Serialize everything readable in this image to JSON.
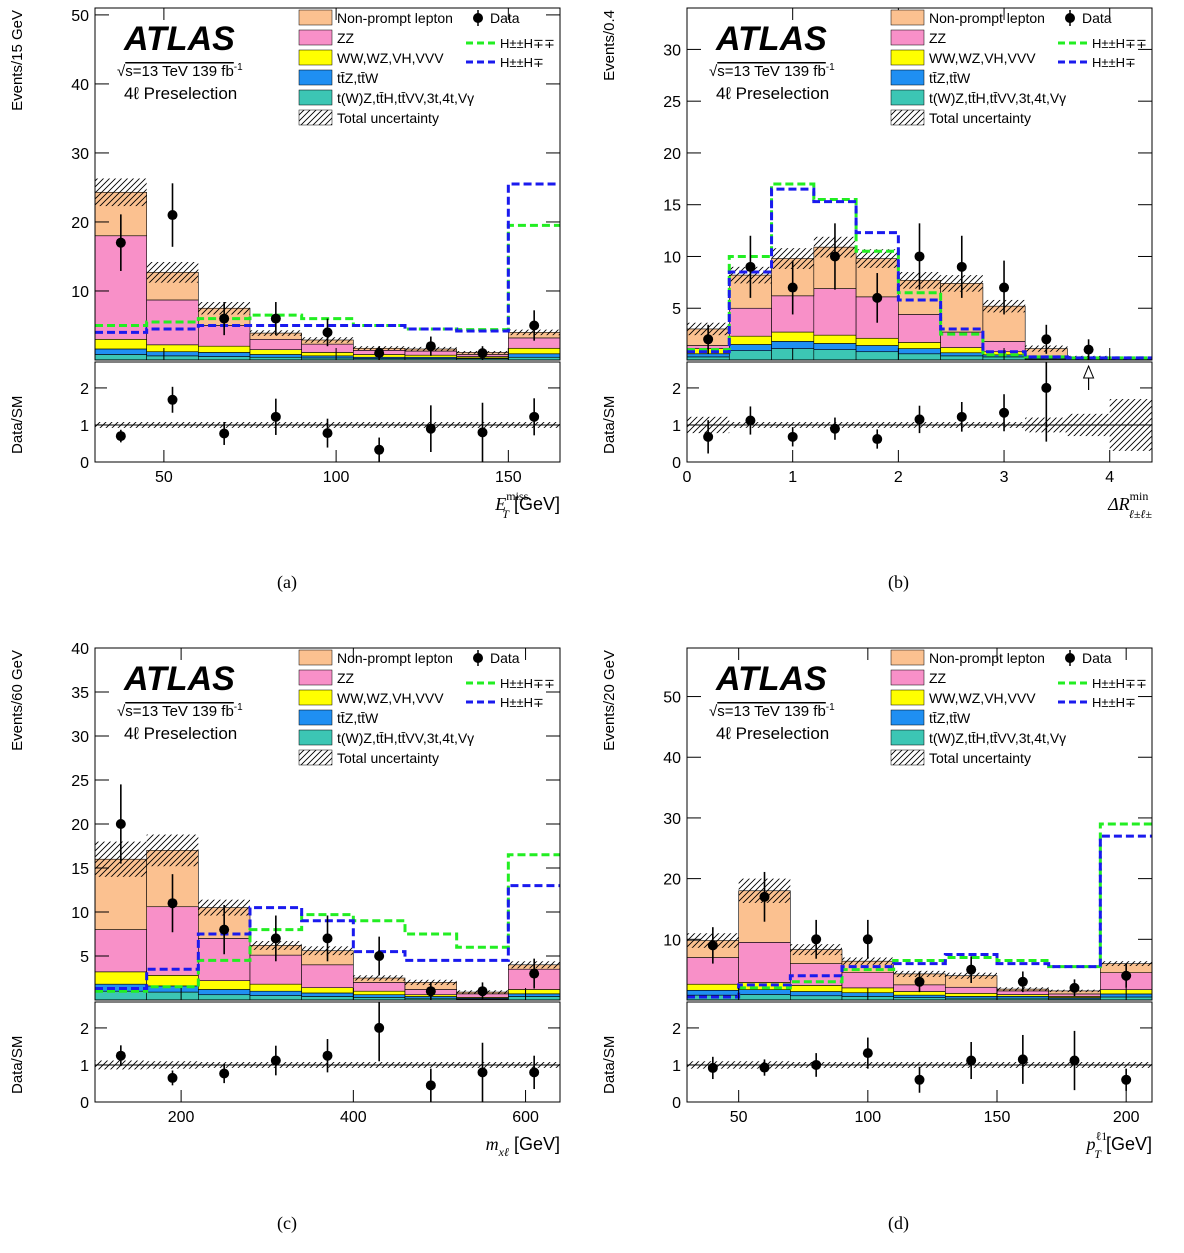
{
  "chart_data": [
    {
      "type": "bar",
      "panel_label": "(a)",
      "ylabel": "Events/15 GeV",
      "ratio_ylabel": "Data/SM",
      "xlabel_main": "E",
      "xlabel_sub": "T",
      "xlabel_sup": "miss",
      "xlabel_unit": " [GeV]",
      "xlim": [
        30,
        165
      ],
      "ylim": [
        0,
        51
      ],
      "ratio_ylim": [
        0,
        2.7
      ],
      "xticks": [
        50,
        100,
        150
      ],
      "yticks": [
        10,
        20,
        30,
        40,
        50
      ],
      "ratio_yticks": [
        0,
        1,
        2
      ],
      "edges": [
        30,
        45,
        60,
        75,
        90,
        105,
        120,
        135,
        150,
        165
      ],
      "stack": [
        {
          "name": "t(W)Z,tt̄H,tt̄VV,3t,4t,Vγ",
          "color": "#3cc6b4",
          "values": [
            0.8,
            0.6,
            0.5,
            0.4,
            0.3,
            0.2,
            0.2,
            0.2,
            0.4
          ]
        },
        {
          "name": "tt̄Z,tt̄W",
          "color": "#1f8ff2",
          "values": [
            0.8,
            0.6,
            0.6,
            0.4,
            0.3,
            0.2,
            0.2,
            0.1,
            0.5
          ]
        },
        {
          "name": "WW,WZ,VH,VVV",
          "color": "#ffff00",
          "values": [
            1.4,
            1.0,
            0.9,
            0.7,
            0.5,
            0.4,
            0.3,
            0.2,
            0.8
          ]
        },
        {
          "name": "ZZ",
          "color": "#f890c8",
          "values": [
            15.0,
            6.5,
            3.0,
            1.5,
            1.2,
            0.6,
            0.6,
            0.3,
            1.5
          ]
        },
        {
          "name": "Non-prompt lepton",
          "color": "#fbc190",
          "values": [
            6.3,
            4.0,
            2.5,
            0.9,
            0.6,
            0.3,
            0.3,
            0.3,
            0.8
          ]
        }
      ],
      "uncertainty": [
        2.0,
        1.5,
        0.9,
        0.4,
        0.4,
        0.3,
        0.3,
        0.2,
        0.4
      ],
      "signals": [
        {
          "name": "H±±H∓∓",
          "color": "#22ee22",
          "values": [
            5,
            5.5,
            6,
            6.5,
            6,
            5,
            4.5,
            4.4,
            19.5
          ]
        },
        {
          "name": "H±±H∓",
          "color": "#1a1aee",
          "values": [
            4,
            4.5,
            5,
            5,
            5,
            5,
            4.5,
            4.2,
            25.5
          ]
        }
      ],
      "data": {
        "name": "Data",
        "x": [
          37.5,
          52.5,
          67.5,
          82.5,
          97.5,
          112.5,
          127.5,
          142.5,
          157.5
        ],
        "y": [
          17,
          21,
          6,
          6,
          4,
          1,
          2,
          1,
          5
        ],
        "err": [
          4.1,
          4.6,
          2.4,
          2.4,
          2.0,
          1.0,
          1.4,
          1.0,
          2.2
        ]
      },
      "ratio": {
        "x": [
          37.5,
          52.5,
          67.5,
          82.5,
          97.5,
          112.5,
          127.5,
          142.5,
          157.5
        ],
        "y": [
          0.7,
          1.68,
          0.77,
          1.22,
          0.78,
          0.33,
          0.9,
          0.8,
          1.22
        ],
        "err": [
          0.17,
          0.35,
          0.31,
          0.49,
          0.39,
          0.33,
          0.63,
          0.8,
          0.5
        ],
        "band": [
          0.08,
          0.08,
          0.08,
          0.08,
          0.08,
          0.08,
          0.08,
          0.08,
          0.08
        ]
      }
    },
    {
      "type": "bar",
      "panel_label": "(b)",
      "ylabel": "Events/0.4",
      "ratio_ylabel": "Data/SM",
      "xlabel_main": "ΔR",
      "xlabel_sub": "ℓ±ℓ±",
      "xlabel_sup": "min",
      "xlabel_unit": "",
      "xlim": [
        0,
        4.4
      ],
      "ylim": [
        0,
        34
      ],
      "ratio_ylim": [
        0,
        2.7
      ],
      "xticks": [
        0,
        1,
        2,
        3,
        4
      ],
      "yticks": [
        5,
        10,
        15,
        20,
        25,
        30
      ],
      "ratio_yticks": [
        0,
        1,
        2
      ],
      "edges": [
        0,
        0.4,
        0.8,
        1.2,
        1.6,
        2.0,
        2.4,
        2.8,
        3.2,
        3.6,
        4.0,
        4.4
      ],
      "stack": [
        {
          "name": "t(W)Z,tt̄H,tt̄VV,3t,4t,Vγ",
          "color": "#3cc6b4",
          "values": [
            0.3,
            0.9,
            1.1,
            1.0,
            0.8,
            0.6,
            0.4,
            0.3,
            0.1,
            0.05,
            0.02
          ]
        },
        {
          "name": "tt̄Z,tt̄W",
          "color": "#1f8ff2",
          "values": [
            0.3,
            0.6,
            0.7,
            0.6,
            0.6,
            0.5,
            0.3,
            0.2,
            0.1,
            0.05,
            0.02
          ]
        },
        {
          "name": "WW,WZ,VH,VVV",
          "color": "#ffff00",
          "values": [
            0.5,
            0.8,
            0.9,
            0.8,
            0.7,
            0.6,
            0.5,
            0.3,
            0.1,
            0.05,
            0.02
          ]
        },
        {
          "name": "ZZ",
          "color": "#f890c8",
          "values": [
            0.3,
            2.7,
            3.5,
            4.5,
            4.0,
            2.7,
            1.5,
            1.0,
            0.1,
            0.05,
            0.02
          ]
        },
        {
          "name": "Non-prompt lepton",
          "color": "#fbc190",
          "values": [
            1.6,
            3.2,
            3.6,
            4.0,
            3.7,
            3.3,
            4.7,
            3.4,
            0.7,
            0.1,
            0.02
          ]
        }
      ],
      "uncertainty": [
        0.6,
        0.8,
        1.0,
        1.0,
        0.9,
        0.8,
        0.8,
        0.6,
        0.3,
        0.1,
        0.05
      ],
      "signals": [
        {
          "name": "H±±H∓∓",
          "color": "#22ee22",
          "values": [
            1.0,
            10,
            17,
            15.5,
            10.5,
            6.5,
            2.5,
            0.5,
            0.3,
            0.2,
            0.2
          ]
        },
        {
          "name": "H±±H∓",
          "color": "#1a1aee",
          "values": [
            0.8,
            8.5,
            16.5,
            15.3,
            12.3,
            5.8,
            3.0,
            0.8,
            0.3,
            0.2,
            0.2
          ]
        }
      ],
      "data": {
        "name": "Data",
        "x": [
          0.2,
          0.6,
          1.0,
          1.4,
          1.8,
          2.2,
          2.6,
          3.0,
          3.4,
          3.8
        ],
        "y": [
          2,
          9,
          7,
          10,
          6,
          10,
          9,
          7,
          2,
          1
        ],
        "err": [
          1.4,
          3.0,
          2.6,
          3.2,
          2.4,
          3.2,
          3.0,
          2.6,
          1.4,
          1.0
        ]
      },
      "ratio": {
        "x": [
          0.2,
          0.6,
          1.0,
          1.4,
          1.8,
          2.2,
          2.6,
          3.0,
          3.4
        ],
        "y": [
          0.68,
          1.12,
          0.68,
          0.9,
          0.62,
          1.15,
          1.22,
          1.33,
          2.0
        ],
        "err": [
          0.45,
          0.38,
          0.26,
          0.3,
          0.26,
          0.37,
          0.4,
          0.5,
          1.45
        ],
        "band": [
          0.22,
          0.08,
          0.08,
          0.08,
          0.08,
          0.08,
          0.08,
          0.08,
          0.2,
          0.3,
          0.7
        ],
        "arrow_x": 3.8
      }
    },
    {
      "type": "bar",
      "panel_label": "(c)",
      "ylabel": "Events/60 GeV",
      "ratio_ylabel": "Data/SM",
      "xlabel_main": "m",
      "xlabel_sub": "xℓ",
      "xlabel_sup": "",
      "xlabel_unit": " [GeV]",
      "xlim": [
        100,
        640
      ],
      "ylim": [
        0,
        40
      ],
      "ratio_ylim": [
        0,
        2.7
      ],
      "xticks": [
        200,
        400,
        600
      ],
      "yticks": [
        5,
        10,
        15,
        20,
        25,
        30,
        35,
        40
      ],
      "ratio_yticks": [
        0,
        1,
        2
      ],
      "edges": [
        100,
        160,
        220,
        280,
        340,
        400,
        460,
        520,
        580,
        640
      ],
      "stack": [
        {
          "name": "t(W)Z,tt̄H,tt̄VV,3t,4t,Vγ",
          "color": "#3cc6b4",
          "values": [
            1.0,
            0.9,
            0.6,
            0.5,
            0.4,
            0.3,
            0.2,
            0.1,
            0.4
          ]
        },
        {
          "name": "tt̄Z,tt̄W",
          "color": "#1f8ff2",
          "values": [
            0.8,
            0.7,
            0.6,
            0.5,
            0.4,
            0.3,
            0.2,
            0.1,
            0.3
          ]
        },
        {
          "name": "WW,WZ,VH,VVV",
          "color": "#ffff00",
          "values": [
            1.4,
            1.2,
            1.0,
            0.8,
            0.6,
            0.4,
            0.2,
            0.1,
            0.5
          ]
        },
        {
          "name": "ZZ",
          "color": "#f890c8",
          "values": [
            4.8,
            7.8,
            4.8,
            3.3,
            2.6,
            1.0,
            0.6,
            0.4,
            2.3
          ]
        },
        {
          "name": "Non-prompt lepton",
          "color": "#fbc190",
          "values": [
            8.0,
            6.4,
            3.5,
            1.1,
            1.6,
            0.5,
            0.8,
            0.2,
            0.5
          ]
        }
      ],
      "uncertainty": [
        2.0,
        1.8,
        0.9,
        0.5,
        0.5,
        0.3,
        0.3,
        0.2,
        0.4
      ],
      "signals": [
        {
          "name": "H±±H∓∓",
          "color": "#22ee22",
          "values": [
            1.0,
            1.5,
            4.5,
            8.0,
            9.7,
            9.0,
            7.5,
            6.0,
            16.5
          ]
        },
        {
          "name": "H±±H∓",
          "color": "#1a1aee",
          "values": [
            1.3,
            3.5,
            7.5,
            10.5,
            9.0,
            5.5,
            4.5,
            4.5,
            13.0
          ]
        }
      ],
      "data": {
        "name": "Data",
        "x": [
          130,
          190,
          250,
          310,
          370,
          430,
          490,
          550,
          610
        ],
        "y": [
          20,
          11,
          8,
          7,
          7,
          5,
          1,
          1,
          3
        ],
        "err": [
          4.5,
          3.3,
          2.8,
          2.6,
          2.6,
          2.2,
          1.0,
          1.0,
          1.7
        ]
      },
      "ratio": {
        "x": [
          130,
          190,
          250,
          310,
          370,
          430,
          490,
          550,
          610
        ],
        "y": [
          1.25,
          0.65,
          0.77,
          1.12,
          1.25,
          2.0,
          0.45,
          0.8,
          0.8
        ],
        "err": [
          0.28,
          0.2,
          0.26,
          0.4,
          0.45,
          0.9,
          0.45,
          0.8,
          0.45
        ],
        "band": [
          0.12,
          0.1,
          0.08,
          0.08,
          0.08,
          0.08,
          0.08,
          0.08,
          0.08
        ]
      }
    },
    {
      "type": "bar",
      "panel_label": "(d)",
      "ylabel": "Events/20 GeV",
      "ratio_ylabel": "Data/SM",
      "xlabel_main": "p",
      "xlabel_sub": "T",
      "xlabel_sup": "ℓ1",
      "xlabel_unit": " [GeV]",
      "xlim": [
        30,
        210
      ],
      "ylim": [
        0,
        58
      ],
      "ratio_ylim": [
        0,
        2.7
      ],
      "xticks": [
        50,
        100,
        150,
        200
      ],
      "yticks": [
        10,
        20,
        30,
        40,
        50
      ],
      "ratio_yticks": [
        0,
        1,
        2
      ],
      "edges": [
        30,
        50,
        70,
        90,
        110,
        130,
        150,
        170,
        190,
        210
      ],
      "stack": [
        {
          "name": "t(W)Z,tt̄H,tt̄VV,3t,4t,Vγ",
          "color": "#3cc6b4",
          "values": [
            0.8,
            0.9,
            0.7,
            0.6,
            0.4,
            0.3,
            0.3,
            0.2,
            0.5
          ]
        },
        {
          "name": "tt̄Z,tt̄W",
          "color": "#1f8ff2",
          "values": [
            0.8,
            0.8,
            0.7,
            0.6,
            0.4,
            0.3,
            0.3,
            0.2,
            0.5
          ]
        },
        {
          "name": "WW,WZ,VH,VVV",
          "color": "#ffff00",
          "values": [
            1.0,
            1.2,
            1.0,
            0.8,
            0.6,
            0.5,
            0.3,
            0.2,
            0.7
          ]
        },
        {
          "name": "ZZ",
          "color": "#f890c8",
          "values": [
            4.4,
            6.6,
            3.6,
            2.5,
            1.1,
            1.0,
            0.6,
            0.4,
            2.8
          ]
        },
        {
          "name": "Non-prompt lepton",
          "color": "#fbc190",
          "values": [
            2.8,
            8.5,
            2.3,
            1.9,
            1.8,
            1.9,
            0.3,
            0.5,
            1.5
          ]
        }
      ],
      "uncertainty": [
        1.2,
        2.0,
        0.9,
        0.6,
        0.5,
        0.5,
        0.3,
        0.2,
        0.4
      ],
      "signals": [
        {
          "name": "H±±H∓∓",
          "color": "#22ee22",
          "values": [
            0.5,
            2.0,
            3.0,
            5.0,
            6.5,
            7.0,
            6.5,
            5.5,
            29.0
          ]
        },
        {
          "name": "H±±H∓",
          "color": "#1a1aee",
          "values": [
            0.5,
            2.5,
            4.0,
            5.5,
            6.0,
            7.5,
            6.0,
            5.5,
            27.0
          ]
        }
      ],
      "data": {
        "name": "Data",
        "x": [
          40,
          60,
          80,
          100,
          120,
          140,
          160,
          180,
          200
        ],
        "y": [
          9,
          17,
          10,
          10,
          3,
          5,
          3,
          2,
          4
        ],
        "err": [
          3.0,
          4.1,
          3.2,
          3.2,
          1.7,
          2.2,
          1.7,
          1.4,
          2.0
        ]
      },
      "ratio": {
        "x": [
          40,
          60,
          80,
          100,
          120,
          140,
          160,
          180,
          200
        ],
        "y": [
          0.92,
          0.93,
          1.0,
          1.32,
          0.6,
          1.12,
          1.15,
          1.12,
          0.6
        ],
        "err": [
          0.3,
          0.22,
          0.32,
          0.42,
          0.35,
          0.5,
          0.66,
          0.8,
          0.3
        ],
        "band": [
          0.1,
          0.1,
          0.08,
          0.08,
          0.08,
          0.08,
          0.08,
          0.08,
          0.08
        ]
      }
    }
  ],
  "labels": {
    "experiment": "ATLAS",
    "energy_prefix": "√",
    "energy_text": "s=13 TeV 139 fb",
    "lumi_sup": "-1",
    "selection": "4ℓ Preselection",
    "legend": {
      "non_prompt": "Non-prompt lepton",
      "zz": "ZZ",
      "vv": "WW,WZ,VH,VVV",
      "ttv": "tt̄Z,tt̄W",
      "other": "t(W)Z,tt̄H,tt̄VV,3t,4t,Vγ",
      "unc": "Total uncertainty",
      "data": "Data",
      "hpp_hmm": "H±±H∓∓",
      "hpp_hm": "H±±H∓"
    }
  },
  "colors": {
    "non_prompt": "#fbc190",
    "zz": "#f890c8",
    "vv": "#ffff00",
    "ttv": "#1f8ff2",
    "other": "#3cc6b4",
    "hpp_hmm": "#22ee22",
    "hpp_hm": "#1a1aee"
  }
}
